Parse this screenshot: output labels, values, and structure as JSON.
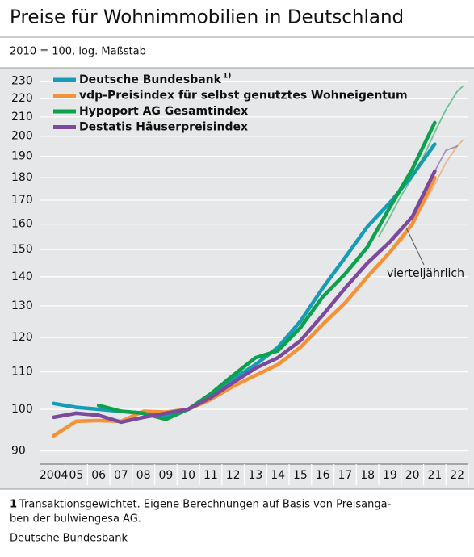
{
  "chart_data": {
    "type": "line",
    "title": "Preise für Wohnimmobilien in Deutschland",
    "subtitle": "2010 = 100, log. Maßstab",
    "log_y": true,
    "grid": true,
    "legend": "upper left",
    "xlim": [
      2003.4,
      2022.5
    ],
    "ylim": [
      87,
      235
    ],
    "xticks": [
      {
        "value": 2004,
        "label": "2004"
      },
      {
        "value": 2005,
        "label": "05"
      },
      {
        "value": 2006,
        "label": "06"
      },
      {
        "value": 2007,
        "label": "07"
      },
      {
        "value": 2008,
        "label": "08"
      },
      {
        "value": 2009,
        "label": "09"
      },
      2010,
      2011,
      2012,
      2013,
      2014,
      2015,
      2016,
      2017,
      2018,
      2019,
      2020,
      2021,
      2022
    ],
    "xtick_labels_short": true,
    "yticks": [
      90,
      100,
      110,
      120,
      130,
      140,
      150,
      160,
      170,
      180,
      190,
      200,
      210,
      220,
      230
    ],
    "series": [
      {
        "name": "Deutsche Bundesbank",
        "footnote_ref": "1)",
        "color": "#169cb6",
        "x": [
          2004,
          2005,
          2006,
          2007,
          2008,
          2009,
          2010,
          2011,
          2012,
          2013,
          2014,
          2015,
          2016,
          2017,
          2018,
          2019,
          2020,
          2021
        ],
        "values": [
          101.5,
          100.5,
          100,
          99.5,
          99,
          98.5,
          100,
          103,
          108,
          112,
          117,
          125,
          136,
          147,
          159,
          169,
          181,
          196
        ]
      },
      {
        "name": "vdp-Preisindex für selbst genutztes Wohneigentum",
        "color": "#f39237",
        "x": [
          2004,
          2005,
          2006,
          2007,
          2008,
          2009,
          2010,
          2011,
          2012,
          2013,
          2014,
          2015,
          2016,
          2017,
          2018,
          2019,
          2020,
          2021
        ],
        "values": [
          93.5,
          97,
          97.2,
          97,
          99.5,
          99.3,
          100,
          102.5,
          106,
          109,
          112,
          117,
          124,
          131,
          140,
          149,
          160,
          180
        ],
        "quarterly": {
          "x": [
            2019.5,
            2020,
            2020.5,
            2021,
            2021.5,
            2022,
            2022.25
          ],
          "values": [
            153,
            160,
            168,
            177,
            187,
            195,
            198
          ]
        }
      },
      {
        "name": "Hypoport AG Gesamtindex",
        "color": "#0ca14d",
        "x": [
          2006,
          2007,
          2008,
          2009,
          2010,
          2011,
          2012,
          2013,
          2014,
          2015,
          2016,
          2017,
          2018,
          2019,
          2020,
          2021
        ],
        "values": [
          101,
          99.5,
          99,
          97.5,
          100,
          104,
          109,
          114,
          116,
          123,
          133,
          141,
          151,
          167,
          184,
          207
        ],
        "quarterly": {
          "x": [
            2018.5,
            2019,
            2019.5,
            2020,
            2020.5,
            2021,
            2021.5,
            2022,
            2022.25
          ],
          "values": [
            155,
            163,
            172,
            180,
            190,
            202,
            214,
            224,
            227
          ]
        }
      },
      {
        "name": "Destatis Häuserpreisindex",
        "color": "#7b4a9c",
        "x": [
          2004,
          2005,
          2006,
          2007,
          2008,
          2009,
          2010,
          2011,
          2012,
          2013,
          2014,
          2015,
          2016,
          2017,
          2018,
          2019,
          2020,
          2021
        ],
        "values": [
          98,
          99,
          98.5,
          96.8,
          98,
          99,
          100,
          103,
          107,
          111,
          114,
          119,
          127,
          136,
          145,
          153,
          163,
          183
        ],
        "quarterly": {
          "x": [
            2020,
            2020.5,
            2021,
            2021.5,
            2022
          ],
          "values": [
            163,
            172,
            183,
            193,
            195
          ]
        }
      }
    ],
    "annotation": "vierteljährlich",
    "footnote": {
      "marker": "1",
      "lines": [
        "Transaktionsgewichtet. Eigene Berechnungen auf Basis von Preisanga-",
        "ben der bulwiengesa AG."
      ]
    },
    "source": "Deutsche Bundesbank"
  }
}
